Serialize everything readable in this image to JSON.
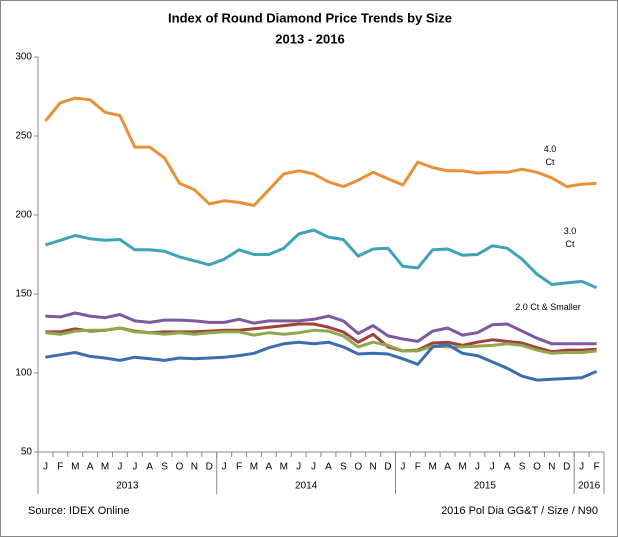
{
  "chart_data": {
    "type": "line",
    "title": "Index of Round Diamond Price Trends by Size",
    "subtitle": "2013 - 2016",
    "categories": [
      "J",
      "F",
      "M",
      "A",
      "M",
      "J",
      "J",
      "A",
      "S",
      "O",
      "N",
      "D",
      "J",
      "F",
      "M",
      "A",
      "M",
      "J",
      "J",
      "A",
      "S",
      "O",
      "N",
      "D",
      "J",
      "F",
      "M",
      "A",
      "M",
      "J",
      "J",
      "A",
      "S",
      "O",
      "N",
      "D",
      "J",
      "F"
    ],
    "years": [
      "2013",
      "2014",
      "2015",
      "2016"
    ],
    "ylim": [
      50,
      300
    ],
    "yticks": [
      50,
      100,
      150,
      200,
      250,
      300
    ],
    "grid": false,
    "series": [
      {
        "name": "4.0\nCt",
        "color": "#e8913a",
        "values": [
          259.5,
          271,
          274,
          273,
          265,
          263,
          243,
          243,
          236,
          220,
          216,
          207,
          209,
          208,
          206,
          216,
          226,
          228,
          226,
          221,
          218,
          222,
          227,
          223,
          219,
          233.5,
          230,
          228,
          228,
          226.5,
          227,
          227,
          229,
          227,
          223.5,
          218,
          219.5,
          220
        ]
      },
      {
        "name": "3.0\nCt",
        "color": "#3fa3b6",
        "values": [
          181,
          184,
          187,
          185,
          184,
          184.5,
          178,
          178,
          177,
          173.5,
          171,
          168.5,
          172,
          178,
          175,
          175,
          179,
          188,
          190.5,
          186,
          184.5,
          174,
          178.5,
          179,
          167.5,
          166.5,
          178,
          178.5,
          174.5,
          175,
          180.5,
          179,
          172,
          162.5,
          156,
          157,
          158,
          154
        ]
      },
      {
        "name": "2.0 Ct & Smaller",
        "color": "#7d5a9b",
        "values": [
          136,
          135.5,
          138,
          136,
          135,
          137,
          133,
          132,
          133.5,
          133.5,
          133,
          132,
          132,
          134,
          131.5,
          133,
          133,
          133,
          134,
          136,
          133,
          125,
          130,
          123.5,
          121.5,
          120,
          126.5,
          128.5,
          124,
          125.5,
          130.5,
          131,
          126.5,
          122,
          118.5,
          118.5,
          118.5,
          118.5
        ]
      },
      {
        "color": "#a0403c",
        "values": [
          126,
          126,
          128,
          126.5,
          127,
          128.5,
          126.5,
          125.5,
          126,
          126,
          126,
          126.5,
          127,
          127,
          128,
          129,
          130,
          131,
          131,
          129,
          126,
          119.5,
          124.5,
          116.5,
          114,
          114.5,
          119,
          119.5,
          117.5,
          119.5,
          121,
          120,
          119,
          116,
          113.5,
          114.5,
          114.5,
          115
        ]
      },
      {
        "color": "#8ea84a",
        "values": [
          125.5,
          124.5,
          126.5,
          127,
          127,
          128.5,
          126,
          125.5,
          124.5,
          125.5,
          124.5,
          125.5,
          126,
          126,
          124,
          125.5,
          124.5,
          125.5,
          127,
          126.5,
          123.5,
          116.5,
          119.5,
          117.5,
          114,
          114,
          117,
          116.5,
          116.5,
          117,
          117.5,
          118.5,
          117.5,
          114.5,
          112.5,
          113,
          113,
          114
        ]
      },
      {
        "color": "#3a6eae",
        "values": [
          110,
          111.5,
          113,
          110.5,
          109.5,
          108,
          110,
          109,
          108,
          109.5,
          109,
          109.5,
          110,
          111,
          112.5,
          116,
          118.5,
          119.5,
          118.5,
          119.5,
          116.5,
          112,
          112.5,
          112,
          109,
          105.5,
          116.5,
          118,
          112.5,
          111,
          107,
          103,
          98,
          95.5,
          96,
          96.5,
          97,
          101
        ]
      }
    ],
    "annotations": [
      "Source:  IDEX Online",
      "2016 Pol Dia GG&T / Size / N90"
    ]
  }
}
